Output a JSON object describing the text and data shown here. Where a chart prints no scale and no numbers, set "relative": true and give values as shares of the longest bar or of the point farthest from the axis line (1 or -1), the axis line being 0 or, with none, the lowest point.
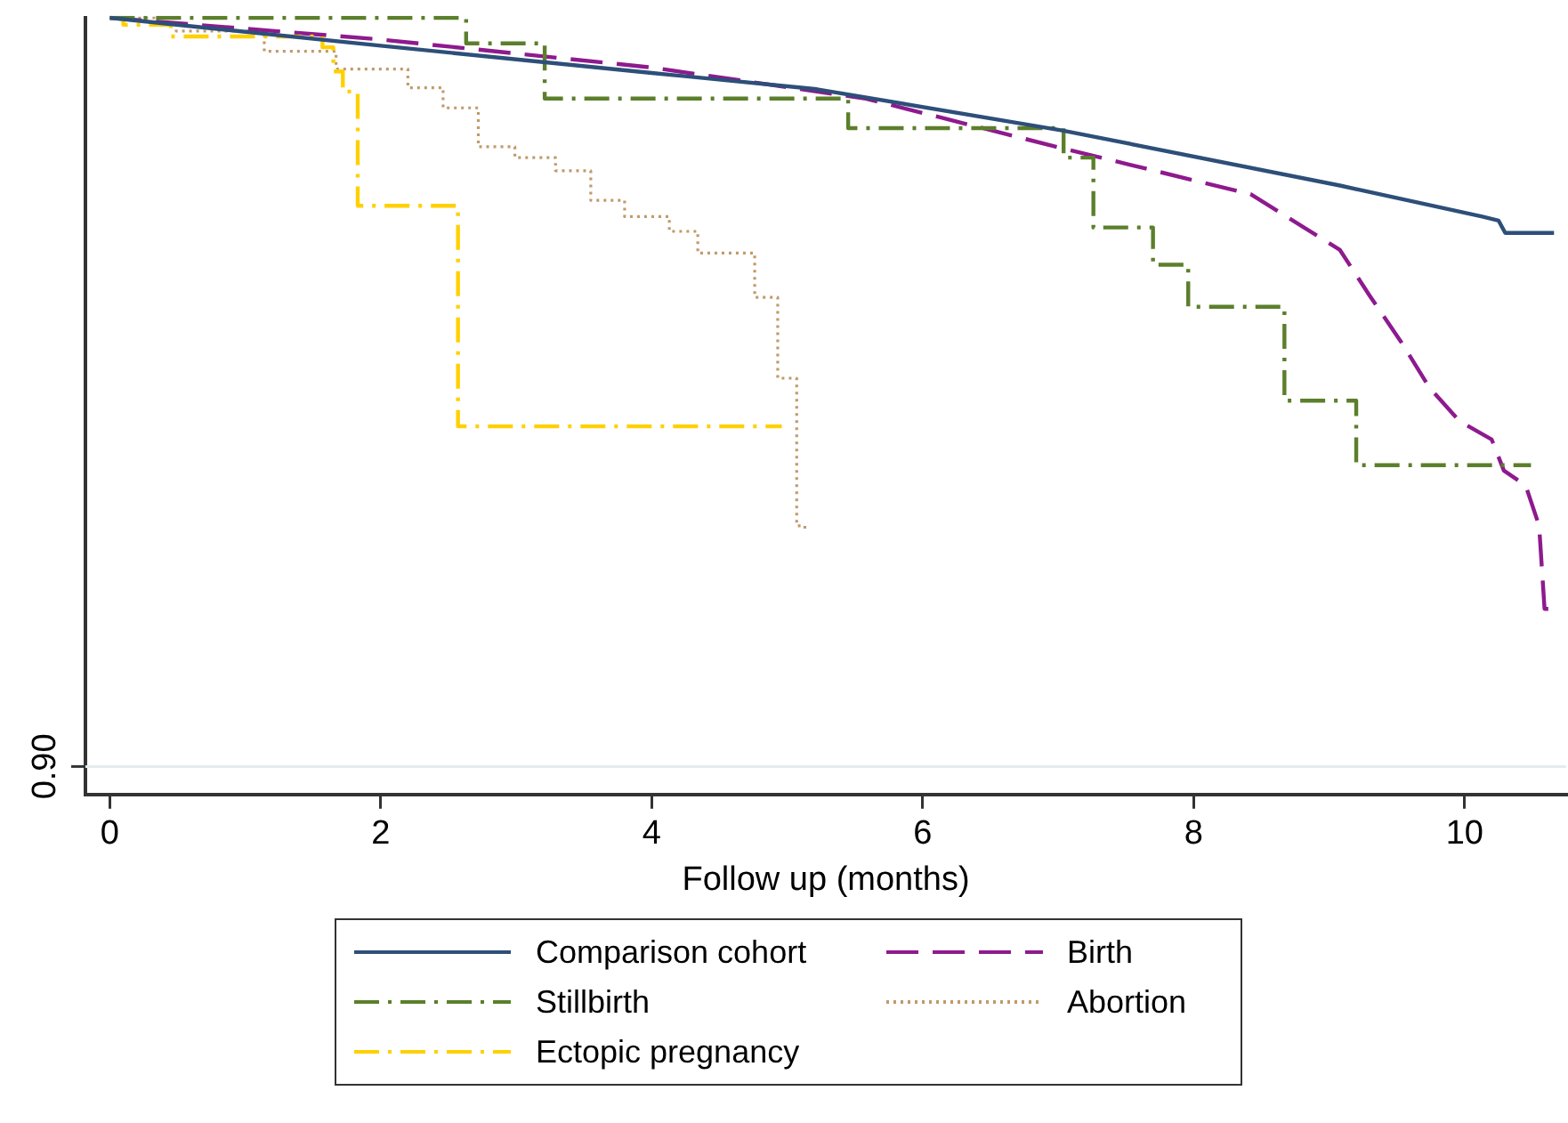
{
  "chart_data": {
    "type": "step",
    "xlabel": "Follow up (months)",
    "relative": true,
    "xlim": [
      -0.18,
      10.75
    ],
    "xticks": [
      0,
      2,
      4,
      6,
      8,
      10
    ],
    "legend": "bottom",
    "grid": false,
    "ref_lines": [
      {
        "axis": "y",
        "value": 0.036,
        "color": "#e4ecee"
      }
    ],
    "annotations": [
      "0.90"
    ],
    "series": [
      {
        "name": "Comparison cohort",
        "type": "line",
        "color": "#2d4f79",
        "line_style": "solid",
        "x": [
          0,
          2,
          4,
          5.22,
          7.03,
          9.08,
          10.13,
          10.25,
          10.3,
          10.66
        ],
        "values": [
          1.0,
          0.964,
          0.929,
          0.908,
          0.855,
          0.784,
          0.744,
          0.739,
          0.723,
          0.723
        ]
      },
      {
        "name": "Stillbirth",
        "color": "#5b7f2b",
        "line_style": "dashdot",
        "x": [
          0,
          2.63,
          3.21,
          5.45,
          7.04,
          7.26,
          7.7,
          7.96,
          8.67,
          9.2,
          10.49
        ],
        "values": [
          1.0,
          0.967,
          0.896,
          0.858,
          0.82,
          0.73,
          0.682,
          0.628,
          0.507,
          0.424,
          0.424
        ]
      },
      {
        "name": "Ectopic pregnancy",
        "color": "#ffd000",
        "line_style": "dashdot",
        "x": [
          0,
          0.1,
          0.45,
          1.57,
          1.65,
          1.72,
          1.83,
          2.57,
          4.96
        ],
        "values": [
          1.0,
          0.991,
          0.976,
          0.962,
          0.931,
          0.905,
          0.758,
          0.474,
          0.474
        ]
      },
      {
        "name": "Birth",
        "type": "line",
        "color": "#8e1a8e",
        "line_style": "dashed",
        "x": [
          0,
          2,
          4,
          5.58,
          7.03,
          8.42,
          9.08,
          9.3,
          9.53,
          9.74,
          9.96,
          10.2,
          10.29,
          10.45,
          10.55,
          10.59,
          10.66
        ],
        "values": [
          1.0,
          0.972,
          0.936,
          0.896,
          0.832,
          0.773,
          0.701,
          0.642,
          0.583,
          0.524,
          0.481,
          0.457,
          0.417,
          0.398,
          0.346,
          0.239,
          0.239
        ]
      },
      {
        "name": "Abortion",
        "color": "#c19a6b",
        "line_style": "dotted",
        "x": [
          0,
          0.49,
          1.14,
          1.67,
          2.2,
          2.46,
          2.72,
          2.99,
          3.29,
          3.55,
          3.8,
          4.13,
          4.34,
          4.76,
          4.93,
          5.07,
          5.13
        ],
        "values": [
          1.0,
          0.983,
          0.957,
          0.934,
          0.91,
          0.884,
          0.834,
          0.82,
          0.803,
          0.765,
          0.744,
          0.725,
          0.697,
          0.64,
          0.536,
          0.346,
          0.341
        ]
      }
    ]
  }
}
